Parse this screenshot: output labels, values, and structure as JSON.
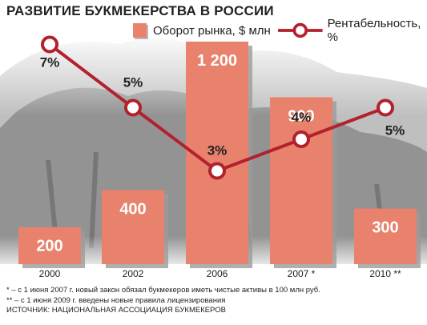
{
  "title": "РАЗВИТИЕ БУКМЕКЕРСТВА В РОССИИ",
  "colors": {
    "bar": "#e8826c",
    "bar_shadow": "#9b9b9b",
    "line": "#b3212d",
    "marker_fill": "#ffffff",
    "text": "#222222",
    "bar_text": "#ffffff",
    "background_photo": "#7d7d7d"
  },
  "legend": {
    "bar_label": "Оборот рынка, $ млн",
    "line_label": "Рентабельность, %"
  },
  "chart_data": {
    "type": "bar",
    "categories": [
      "2000",
      "2002",
      "2006",
      "2007 *",
      "2010 **"
    ],
    "series": [
      {
        "name": "Оборот рынка, $ млн",
        "type": "bar",
        "values": [
          200,
          400,
          1200,
          900,
          300
        ],
        "labels": [
          "200",
          "400",
          "1 200",
          "900",
          "300"
        ]
      },
      {
        "name": "Рентабельность, %",
        "type": "line",
        "values": [
          7,
          5,
          3,
          4,
          5
        ],
        "labels": [
          "7%",
          "5%",
          "3%",
          "4%",
          "5%"
        ]
      }
    ]
  },
  "footnotes": [
    "* – с 1 июня 2007 г. новый закон обязал букмекеров иметь чистые активы в 100 млн руб.",
    "** – с 1 июня 2009 г. введены новые правила лицензирования",
    "ИСТОЧНИК: НАЦИОНАЛЬНАЯ АССОЦИАЦИЯ БУКМЕКЕРОВ"
  ]
}
